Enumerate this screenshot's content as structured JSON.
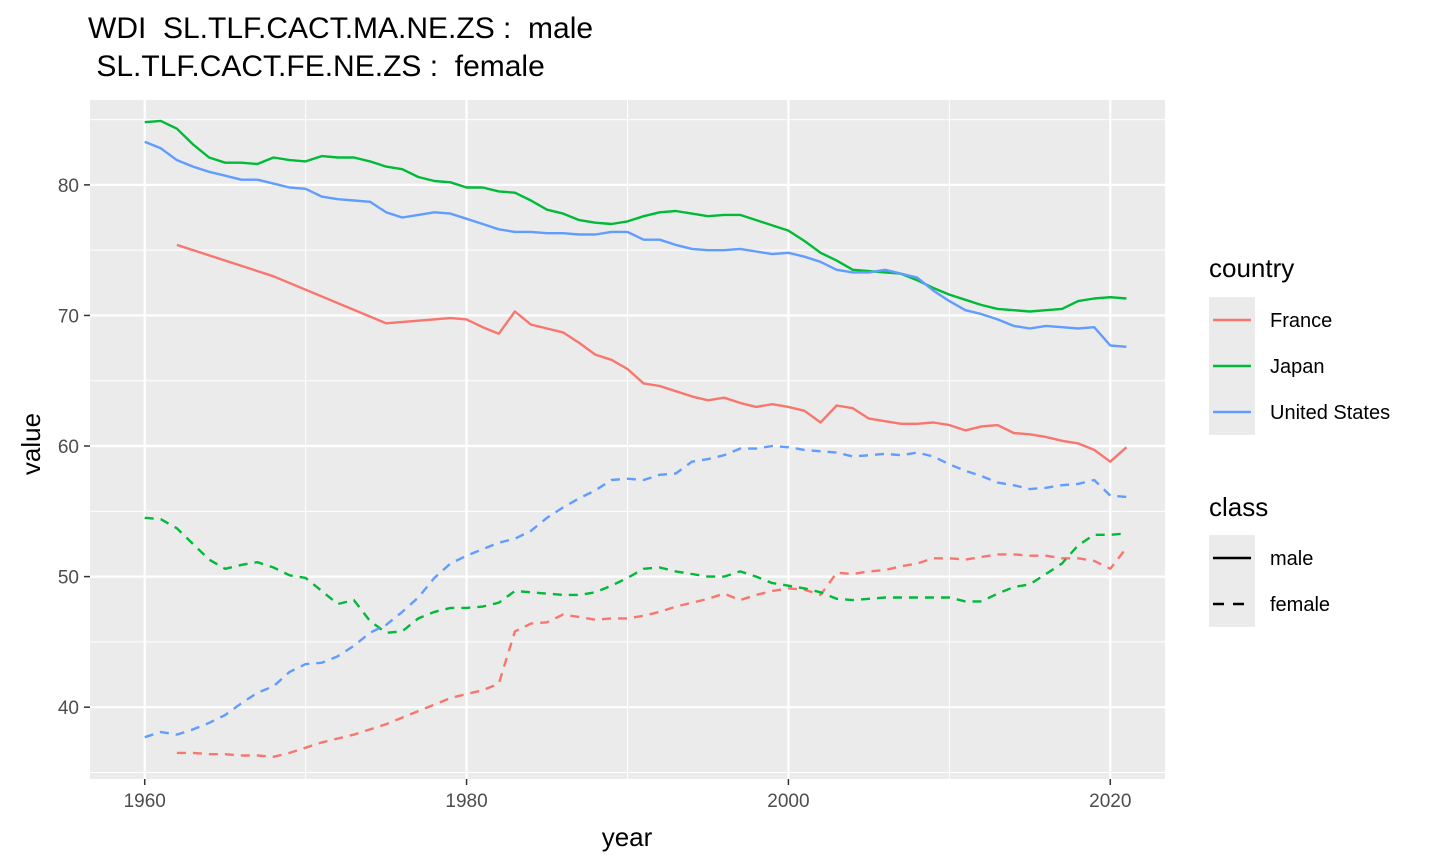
{
  "chart_data": {
    "type": "line",
    "title_line1": "WDI  SL.TLF.CACT.MA.NE.ZS :  male",
    "title_line2": " SL.TLF.CACT.FE.NE.ZS :  female",
    "xlabel": "year",
    "ylabel": "value",
    "xlim": [
      1956.6,
      2023.4
    ],
    "ylim": [
      34.5,
      86.5
    ],
    "x_ticks": [
      1960,
      1980,
      2000,
      2020
    ],
    "y_ticks": [
      40,
      50,
      60,
      70,
      80
    ],
    "grid": true,
    "legend_position": "right",
    "legend_country_title": "country",
    "legend_class_title": "class",
    "class_legend": [
      {
        "name": "male",
        "dash": "solid"
      },
      {
        "name": "female",
        "dash": "dashed"
      }
    ],
    "countries": [
      {
        "name": "France",
        "color": "#F8766D"
      },
      {
        "name": "Japan",
        "color": "#00BA38"
      },
      {
        "name": "United States",
        "color": "#619CFF"
      }
    ],
    "series": [
      {
        "country": "France",
        "class": "male",
        "x": [
          1962,
          1968,
          1975,
          1979,
          1980,
          1981,
          1982,
          1983,
          1984,
          1985,
          1986,
          1987,
          1988,
          1989,
          1990,
          1991,
          1992,
          1993,
          1994,
          1995,
          1996,
          1997,
          1998,
          1999,
          2000,
          2001,
          2002,
          2003,
          2004,
          2005,
          2006,
          2007,
          2008,
          2009,
          2010,
          2011,
          2012,
          2013,
          2014,
          2015,
          2016,
          2017,
          2018,
          2019,
          2020,
          2021
        ],
        "y": [
          75.4,
          73.0,
          69.4,
          69.8,
          69.7,
          69.1,
          68.6,
          70.3,
          69.3,
          69.0,
          68.7,
          67.9,
          67.0,
          66.6,
          65.9,
          64.8,
          64.6,
          64.2,
          63.8,
          63.5,
          63.7,
          63.3,
          63.0,
          63.2,
          63.0,
          62.7,
          61.8,
          63.1,
          62.9,
          62.1,
          61.9,
          61.7,
          61.7,
          61.8,
          61.6,
          61.2,
          61.5,
          61.6,
          61.0,
          60.9,
          60.7,
          60.4,
          60.2,
          59.7,
          58.8,
          59.9
        ]
      },
      {
        "country": "France",
        "class": "female",
        "x": [
          1962,
          1963,
          1964,
          1965,
          1966,
          1967,
          1968,
          1969,
          1970,
          1971,
          1972,
          1973,
          1974,
          1975,
          1976,
          1977,
          1978,
          1979,
          1980,
          1981,
          1982,
          1983,
          1984,
          1985,
          1986,
          1987,
          1988,
          1989,
          1990,
          1991,
          1992,
          1993,
          1994,
          1995,
          1996,
          1997,
          1998,
          1999,
          2000,
          2001,
          2002,
          2003,
          2004,
          2005,
          2006,
          2007,
          2008,
          2009,
          2010,
          2011,
          2012,
          2013,
          2014,
          2015,
          2016,
          2017,
          2018,
          2019,
          2020,
          2021
        ],
        "y": [
          36.5,
          36.5,
          36.4,
          36.4,
          36.3,
          36.3,
          36.2,
          36.5,
          36.9,
          37.3,
          37.6,
          37.9,
          38.3,
          38.7,
          39.2,
          39.7,
          40.2,
          40.7,
          41.0,
          41.3,
          41.8,
          45.8,
          46.4,
          46.5,
          47.1,
          46.9,
          46.7,
          46.8,
          46.8,
          47.0,
          47.3,
          47.7,
          48.0,
          48.3,
          48.7,
          48.2,
          48.6,
          48.9,
          49.1,
          49.0,
          48.6,
          50.3,
          50.2,
          50.4,
          50.5,
          50.8,
          51.0,
          51.4,
          51.4,
          51.3,
          51.5,
          51.7,
          51.7,
          51.6,
          51.6,
          51.4,
          51.4,
          51.2,
          50.6,
          52.2
        ]
      },
      {
        "country": "Japan",
        "class": "male",
        "x": [
          1960,
          1961,
          1962,
          1963,
          1964,
          1965,
          1966,
          1967,
          1968,
          1969,
          1970,
          1971,
          1972,
          1973,
          1974,
          1975,
          1976,
          1977,
          1978,
          1979,
          1980,
          1981,
          1982,
          1983,
          1984,
          1985,
          1986,
          1987,
          1988,
          1989,
          1990,
          1991,
          1992,
          1993,
          1994,
          1995,
          1996,
          1997,
          1998,
          1999,
          2000,
          2001,
          2002,
          2003,
          2004,
          2005,
          2006,
          2007,
          2008,
          2009,
          2010,
          2011,
          2012,
          2013,
          2014,
          2015,
          2016,
          2017,
          2018,
          2019,
          2020,
          2021
        ],
        "y": [
          84.8,
          84.9,
          84.3,
          83.1,
          82.1,
          81.7,
          81.7,
          81.6,
          82.1,
          81.9,
          81.8,
          82.2,
          82.1,
          82.1,
          81.8,
          81.4,
          81.2,
          80.6,
          80.3,
          80.2,
          79.8,
          79.8,
          79.5,
          79.4,
          78.8,
          78.1,
          77.8,
          77.3,
          77.1,
          77.0,
          77.2,
          77.6,
          77.9,
          78.0,
          77.8,
          77.6,
          77.7,
          77.7,
          77.3,
          76.9,
          76.5,
          75.7,
          74.8,
          74.2,
          73.5,
          73.4,
          73.3,
          73.2,
          72.7,
          72.1,
          71.6,
          71.2,
          70.8,
          70.5,
          70.4,
          70.3,
          70.4,
          70.5,
          71.1,
          71.3,
          71.4,
          71.3
        ]
      },
      {
        "country": "Japan",
        "class": "female",
        "x": [
          1960,
          1961,
          1962,
          1963,
          1964,
          1965,
          1966,
          1967,
          1968,
          1969,
          1970,
          1971,
          1972,
          1973,
          1974,
          1975,
          1976,
          1977,
          1978,
          1979,
          1980,
          1981,
          1982,
          1983,
          1984,
          1985,
          1986,
          1987,
          1988,
          1989,
          1990,
          1991,
          1992,
          1993,
          1994,
          1995,
          1996,
          1997,
          1998,
          1999,
          2000,
          2001,
          2002,
          2003,
          2004,
          2005,
          2006,
          2007,
          2008,
          2009,
          2010,
          2011,
          2012,
          2013,
          2014,
          2015,
          2016,
          2017,
          2018,
          2019,
          2020,
          2021
        ],
        "y": [
          54.5,
          54.4,
          53.7,
          52.5,
          51.3,
          50.6,
          50.9,
          51.1,
          50.7,
          50.1,
          49.9,
          48.9,
          47.9,
          48.2,
          46.6,
          45.7,
          45.8,
          46.8,
          47.3,
          47.6,
          47.6,
          47.7,
          48.0,
          48.9,
          48.8,
          48.7,
          48.6,
          48.6,
          48.8,
          49.3,
          49.9,
          50.6,
          50.7,
          50.4,
          50.2,
          50.0,
          50.0,
          50.4,
          50.0,
          49.5,
          49.3,
          49.1,
          48.8,
          48.3,
          48.2,
          48.3,
          48.4,
          48.4,
          48.4,
          48.4,
          48.4,
          48.1,
          48.1,
          48.7,
          49.2,
          49.4,
          50.2,
          51.0,
          52.4,
          53.2,
          53.2,
          53.3
        ]
      },
      {
        "country": "United States",
        "class": "male",
        "x": [
          1960,
          1961,
          1962,
          1963,
          1964,
          1965,
          1966,
          1967,
          1968,
          1969,
          1970,
          1971,
          1972,
          1973,
          1974,
          1975,
          1976,
          1977,
          1978,
          1979,
          1980,
          1981,
          1982,
          1983,
          1984,
          1985,
          1986,
          1987,
          1988,
          1989,
          1990,
          1991,
          1992,
          1993,
          1994,
          1995,
          1996,
          1997,
          1998,
          1999,
          2000,
          2001,
          2002,
          2003,
          2004,
          2005,
          2006,
          2007,
          2008,
          2009,
          2010,
          2011,
          2012,
          2013,
          2014,
          2015,
          2016,
          2017,
          2018,
          2019,
          2020,
          2021
        ],
        "y": [
          83.3,
          82.8,
          81.9,
          81.4,
          81.0,
          80.7,
          80.4,
          80.4,
          80.1,
          79.8,
          79.7,
          79.1,
          78.9,
          78.8,
          78.7,
          77.9,
          77.5,
          77.7,
          77.9,
          77.8,
          77.4,
          77.0,
          76.6,
          76.4,
          76.4,
          76.3,
          76.3,
          76.2,
          76.2,
          76.4,
          76.4,
          75.8,
          75.8,
          75.4,
          75.1,
          75.0,
          75.0,
          75.1,
          74.9,
          74.7,
          74.8,
          74.5,
          74.1,
          73.5,
          73.3,
          73.3,
          73.5,
          73.2,
          72.9,
          71.9,
          71.1,
          70.4,
          70.1,
          69.7,
          69.2,
          69.0,
          69.2,
          69.1,
          69.0,
          69.1,
          67.7,
          67.6
        ]
      },
      {
        "country": "United States",
        "class": "female",
        "x": [
          1960,
          1961,
          1962,
          1963,
          1964,
          1965,
          1966,
          1967,
          1968,
          1969,
          1970,
          1971,
          1972,
          1973,
          1974,
          1975,
          1976,
          1977,
          1978,
          1979,
          1980,
          1981,
          1982,
          1983,
          1984,
          1985,
          1986,
          1987,
          1988,
          1989,
          1990,
          1991,
          1992,
          1993,
          1994,
          1995,
          1996,
          1997,
          1998,
          1999,
          2000,
          2001,
          2002,
          2003,
          2004,
          2005,
          2006,
          2007,
          2008,
          2009,
          2010,
          2011,
          2012,
          2013,
          2014,
          2015,
          2016,
          2017,
          2018,
          2019,
          2020,
          2021
        ],
        "y": [
          37.7,
          38.1,
          37.9,
          38.3,
          38.8,
          39.4,
          40.3,
          41.1,
          41.6,
          42.7,
          43.3,
          43.4,
          43.9,
          44.7,
          45.7,
          46.3,
          47.3,
          48.4,
          49.9,
          51.0,
          51.6,
          52.1,
          52.6,
          52.9,
          53.5,
          54.5,
          55.3,
          56.0,
          56.6,
          57.4,
          57.5,
          57.4,
          57.8,
          57.9,
          58.8,
          59.0,
          59.3,
          59.8,
          59.8,
          60.0,
          59.9,
          59.7,
          59.6,
          59.5,
          59.2,
          59.3,
          59.4,
          59.3,
          59.5,
          59.2,
          58.6,
          58.1,
          57.7,
          57.2,
          57.0,
          56.7,
          56.8,
          57.0,
          57.1,
          57.4,
          56.2,
          56.1
        ]
      }
    ]
  }
}
